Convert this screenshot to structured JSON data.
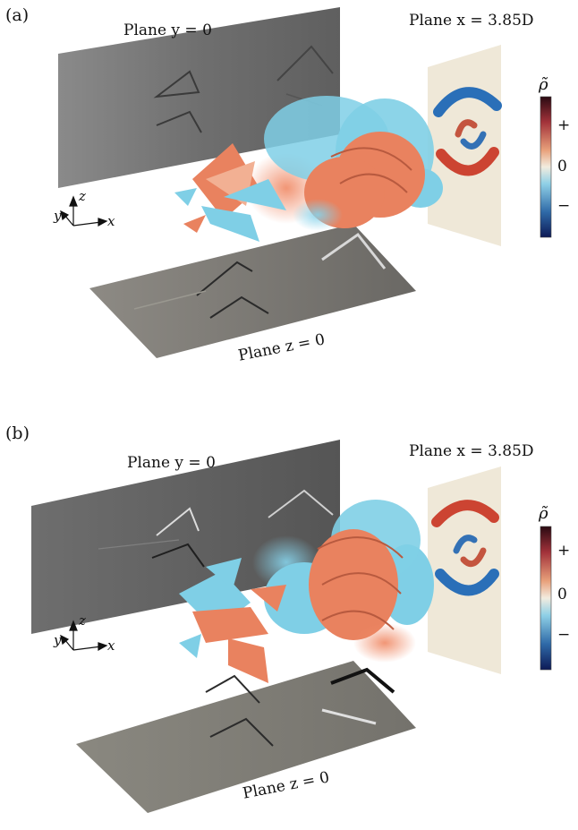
{
  "figure": {
    "panels": [
      {
        "label": "(a)",
        "plane_y": "Plane y = 0",
        "plane_z": "Plane z = 0",
        "plane_x": "Plane x = 3.85D",
        "axes": {
          "x": "x",
          "y": "y",
          "z": "z"
        },
        "colorbar": {
          "title": "ρ̃",
          "ticks": [
            "+",
            "0",
            "−"
          ]
        }
      },
      {
        "label": "(b)",
        "plane_y": "Plane y = 0",
        "plane_z": "Plane z = 0",
        "plane_x": "Plane x = 3.85D",
        "axes": {
          "x": "x",
          "y": "y",
          "z": "z"
        },
        "colorbar": {
          "title": "ρ̃",
          "ticks": [
            "+",
            "0",
            "−"
          ]
        }
      }
    ],
    "colors": {
      "positive_isosurface": "#e9825f",
      "negative_isosurface": "#7fcfe6",
      "colorbar_top": "#2a0a12",
      "colorbar_mid": "#f2ecdf",
      "colorbar_bottom": "#0d1a56"
    }
  }
}
